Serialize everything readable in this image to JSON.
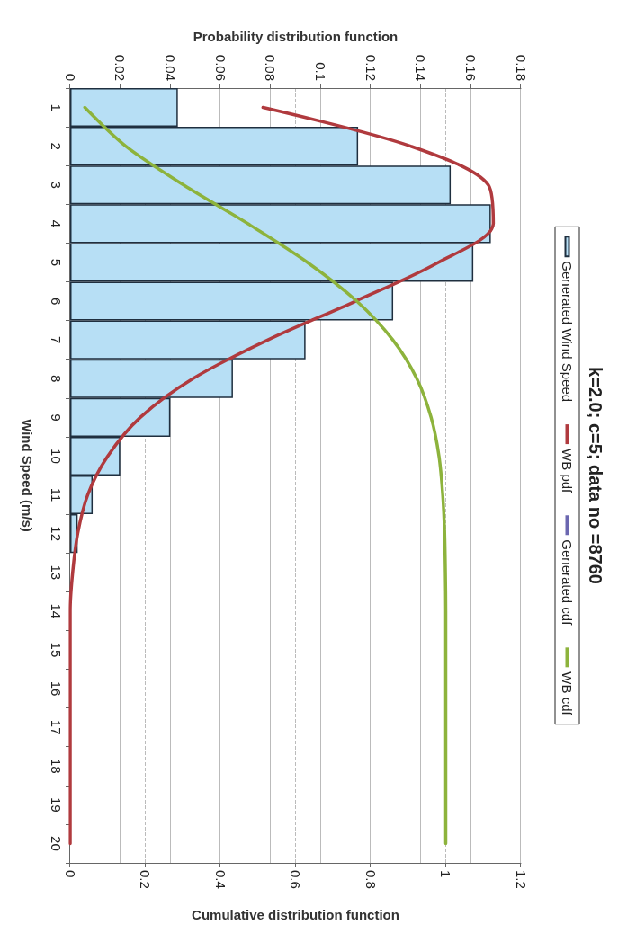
{
  "chart_data": {
    "type": "bar",
    "orientation": "horizontal",
    "title": "k=2.0; c=5; data no =8760",
    "xlabel": "Cumulative distribution function",
    "x2label": "Probability distribution function",
    "ylabel": "Wind Speed (m/s)",
    "categories": [
      "1",
      "2",
      "3",
      "4",
      "5",
      "6",
      "7",
      "8",
      "9",
      "10",
      "11",
      "12",
      "13",
      "14",
      "15",
      "16",
      "17",
      "18",
      "19",
      "20"
    ],
    "series": [
      {
        "name": "Generated Wind Speed",
        "axis": "x2",
        "color": "#b7dff5",
        "values": [
          0.043,
          0.115,
          0.152,
          0.168,
          0.161,
          0.129,
          0.094,
          0.065,
          0.04,
          0.02,
          0.009,
          0.003,
          null,
          0,
          0,
          0,
          0,
          0,
          0,
          0
        ]
      },
      {
        "name": "WB pdf",
        "type": "line",
        "axis": "x2",
        "color": "#b03a3e",
        "values": [
          0.077,
          0.136,
          0.167,
          0.169,
          0.147,
          0.114,
          0.079,
          0.049,
          0.028,
          0.015,
          0.007,
          0.003,
          0.001,
          0,
          0,
          0,
          0,
          0,
          0,
          0
        ]
      },
      {
        "name": "Generated cdf",
        "type": "line",
        "color": "#6b67b0",
        "values": [
          null,
          null,
          null,
          null,
          null,
          null,
          null,
          null,
          null,
          null,
          null,
          null,
          null,
          null,
          null,
          null,
          null,
          null,
          null,
          null
        ]
      },
      {
        "name": "WB cdf",
        "type": "line",
        "color": "#8db33c",
        "values": [
          0.039,
          0.148,
          0.302,
          0.473,
          0.632,
          0.763,
          0.859,
          0.923,
          0.961,
          0.982,
          0.992,
          0.997,
          0.999,
          1,
          1,
          1,
          1,
          1,
          1,
          1
        ]
      }
    ],
    "xlim": [
      0,
      1.2
    ],
    "xticks": [
      0,
      0.2,
      0.4,
      0.6,
      0.8,
      1,
      1.2
    ],
    "x2lim": [
      0,
      0.18
    ],
    "x2ticks": [
      0,
      0.02,
      0.04,
      0.06,
      0.08,
      0.1,
      0.12,
      0.14,
      0.16,
      0.18
    ],
    "grid": true,
    "legend": "right",
    "marker": "none"
  }
}
